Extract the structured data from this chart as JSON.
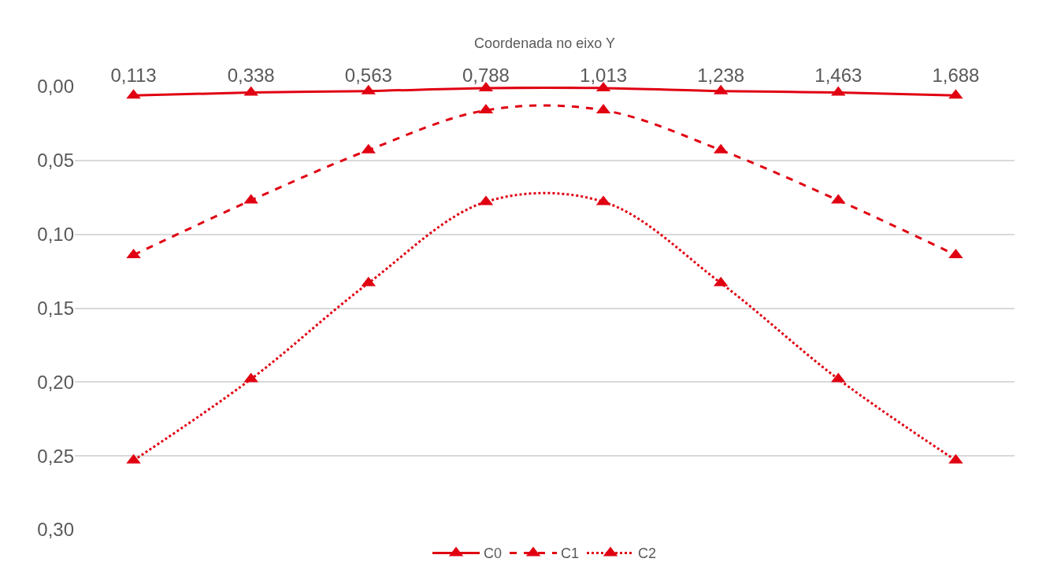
{
  "chart_data": {
    "type": "line",
    "xlabel": "Coordenada no eixo Y",
    "categories": [
      "0,113",
      "0,338",
      "0,563",
      "0,788",
      "1,013",
      "1,238",
      "1,463",
      "1,688"
    ],
    "series": [
      {
        "name": "C0",
        "color": "#e00012",
        "line_style": "solid",
        "values": [
          0.006,
          0.004,
          0.003,
          0.001,
          0.001,
          0.003,
          0.004,
          0.006
        ]
      },
      {
        "name": "C1",
        "color": "#e00012",
        "line_style": "dashed",
        "values": [
          0.114,
          0.077,
          0.043,
          0.016,
          0.016,
          0.043,
          0.077,
          0.114
        ]
      },
      {
        "name": "C2",
        "color": "#e00012",
        "line_style": "dotted",
        "values": [
          0.253,
          0.198,
          0.133,
          0.078,
          0.078,
          0.133,
          0.198,
          0.253
        ]
      }
    ],
    "ylim": [
      0.3,
      0
    ],
    "yticks": [
      {
        "value": 0,
        "label": "0,00"
      },
      {
        "value": 0.05,
        "label": "0,05"
      },
      {
        "value": 0.1,
        "label": "0,10"
      },
      {
        "value": 0.15,
        "label": "0,15"
      },
      {
        "value": 0.2,
        "label": "0,20"
      },
      {
        "value": 0.25,
        "label": "0,25"
      },
      {
        "value": 0.3,
        "label": "0,30"
      }
    ],
    "grid": "y",
    "legend": "bottom",
    "marker": "triangle"
  }
}
